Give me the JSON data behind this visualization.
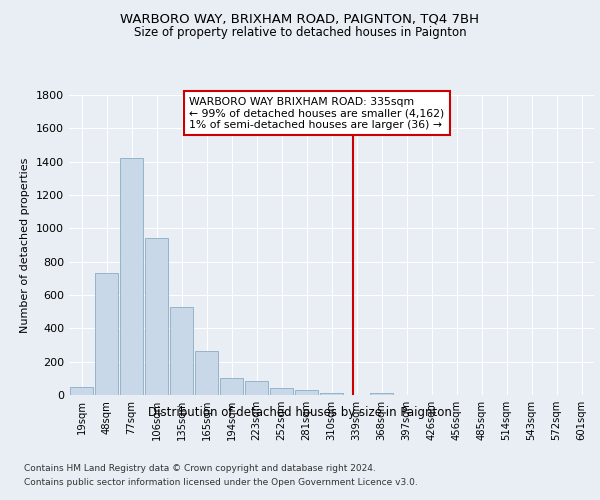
{
  "title": "WARBORO WAY, BRIXHAM ROAD, PAIGNTON, TQ4 7BH",
  "subtitle": "Size of property relative to detached houses in Paignton",
  "xlabel": "Distribution of detached houses by size in Paignton",
  "ylabel": "Number of detached properties",
  "footer_line1": "Contains HM Land Registry data © Crown copyright and database right 2024.",
  "footer_line2": "Contains public sector information licensed under the Open Government Licence v3.0.",
  "bin_labels": [
    "19sqm",
    "48sqm",
    "77sqm",
    "106sqm",
    "135sqm",
    "165sqm",
    "194sqm",
    "223sqm",
    "252sqm",
    "281sqm",
    "310sqm",
    "339sqm",
    "368sqm",
    "397sqm",
    "426sqm",
    "456sqm",
    "485sqm",
    "514sqm",
    "543sqm",
    "572sqm",
    "601sqm"
  ],
  "bar_values": [
    50,
    730,
    1420,
    940,
    530,
    265,
    105,
    85,
    40,
    28,
    10,
    0,
    15,
    0,
    0,
    0,
    0,
    0,
    0,
    0,
    0
  ],
  "bar_color": "#c8d8e8",
  "bar_edge_color": "#7aa0bb",
  "vline_x": 10.85,
  "vline_color": "#cc0000",
  "annotation_text_line1": "WARBORO WAY BRIXHAM ROAD: 335sqm",
  "annotation_text_line2": "← 99% of detached houses are smaller (4,162)",
  "annotation_text_line3": "1% of semi-detached houses are larger (36) →",
  "annotation_box_color": "#cc0000",
  "ylim": [
    0,
    1800
  ],
  "yticks": [
    0,
    200,
    400,
    600,
    800,
    1000,
    1200,
    1400,
    1600,
    1800
  ],
  "bg_color": "#e8eef4",
  "plot_bg_color": "#e8eef4",
  "grid_color": "#ffffff"
}
